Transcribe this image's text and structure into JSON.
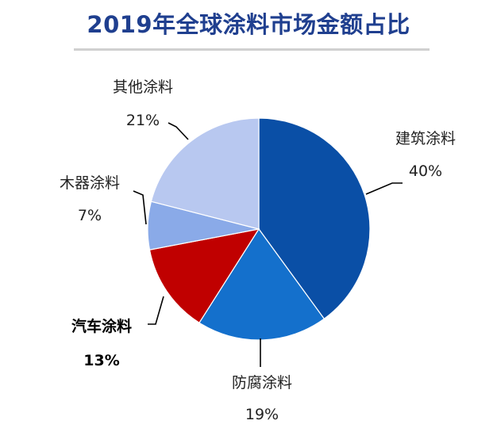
{
  "chart_data": {
    "type": "pie",
    "title": "2019年全球涂料市场金额占比",
    "slices": [
      {
        "name": "建筑涂料",
        "value": 40,
        "label": "40%",
        "color": "#0a4fa6",
        "bold": false
      },
      {
        "name": "防腐涂料",
        "value": 19,
        "label": "19%",
        "color": "#1470cc",
        "bold": false
      },
      {
        "name": "汽车涂料",
        "value": 13,
        "label": "13%",
        "color": "#c00000",
        "bold": true
      },
      {
        "name": "木器涂料",
        "value": 7,
        "label": "7%",
        "color": "#8aaae8",
        "bold": false
      },
      {
        "name": "其他涂料",
        "value": 21,
        "label": "21%",
        "color": "#b8c8f0",
        "bold": false
      }
    ],
    "start_angle_deg": 0,
    "direction": "clockwise",
    "legend": "none",
    "data_labels": "outside-with-leader-lines"
  }
}
